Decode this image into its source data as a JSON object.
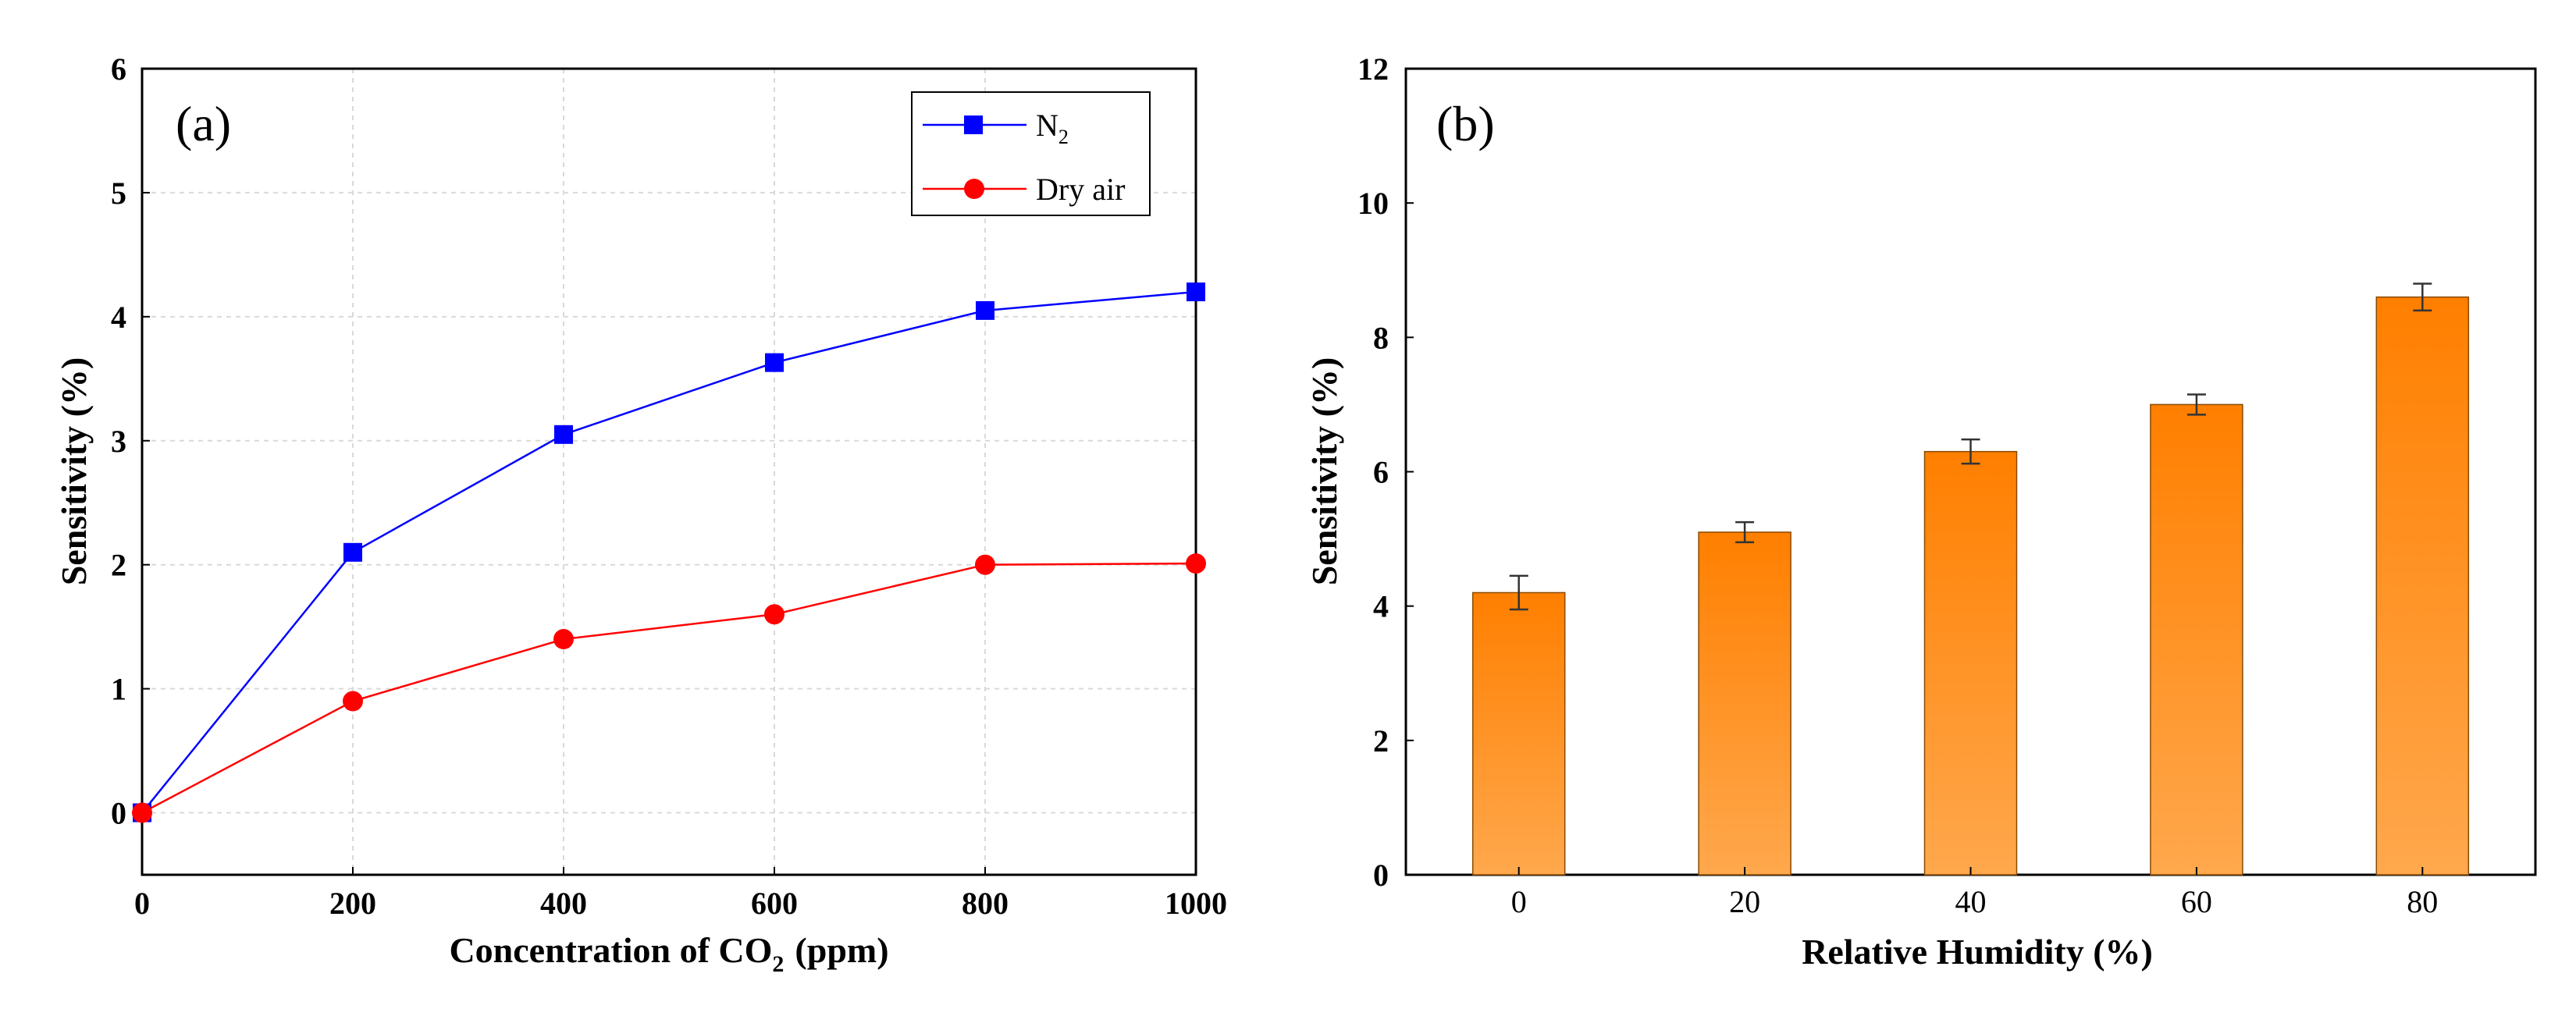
{
  "chart_data": [
    {
      "type": "line",
      "panel_label": "(a)",
      "xlabel": "Concentration of CO",
      "xlabel_sub": "2",
      "xlabel_unit": "(ppm)",
      "ylabel": "Sensitivity (%)",
      "xlim": [
        0,
        1000
      ],
      "ylim": [
        -0.5,
        6
      ],
      "x_ticks": [
        0,
        200,
        400,
        600,
        800,
        1000
      ],
      "y_ticks": [
        0,
        1,
        2,
        3,
        4,
        5,
        6
      ],
      "grid": true,
      "legend_position": "top-right",
      "x": [
        0,
        200,
        400,
        600,
        800,
        1000
      ],
      "series": [
        {
          "name": "N",
          "name_sub": "2",
          "color": "#0000ff",
          "marker": "square",
          "values": [
            0,
            2.1,
            3.05,
            3.63,
            4.05,
            4.2
          ]
        },
        {
          "name": "Dry air",
          "name_sub": "",
          "color": "#ff0000",
          "marker": "circle",
          "values": [
            0,
            0.9,
            1.4,
            1.6,
            2.0,
            2.01
          ]
        }
      ]
    },
    {
      "type": "bar",
      "panel_label": "(b)",
      "xlabel": "Relative Humidity (%)",
      "ylabel": "Sensitivity (%)",
      "ylim": [
        0,
        12
      ],
      "y_ticks": [
        0,
        2,
        4,
        6,
        8,
        10,
        12
      ],
      "categories": [
        "0",
        "20",
        "40",
        "60",
        "80"
      ],
      "values": [
        4.2,
        5.1,
        6.3,
        7.0,
        8.6
      ],
      "errors": [
        0.25,
        0.15,
        0.18,
        0.15,
        0.2
      ],
      "bar_color_top": "#ff7f00",
      "bar_color_bottom": "#ffa84d",
      "grid": false
    }
  ]
}
